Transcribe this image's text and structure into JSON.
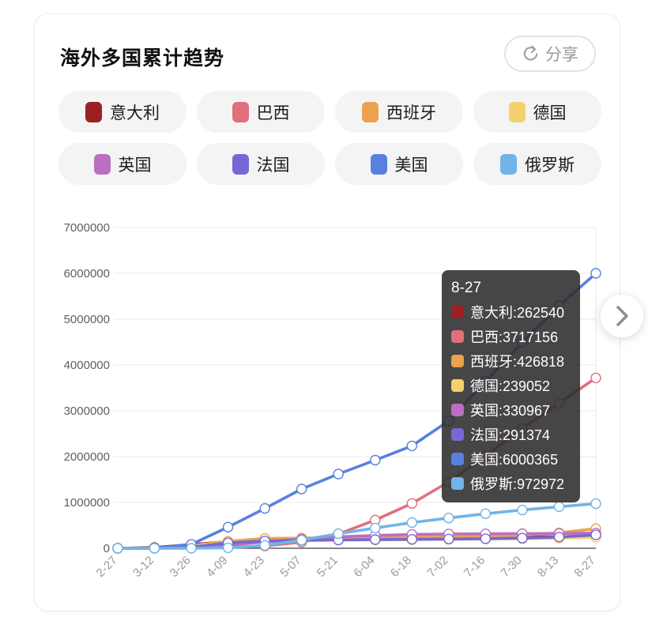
{
  "header": {
    "title": "海外多国累计趋势",
    "share_label": "分享",
    "share_icon": "circular-arrow-share",
    "next_icon": "chevron-right"
  },
  "legend": {
    "items": [
      {
        "label": "意大利",
        "color": "#9D2021"
      },
      {
        "label": "巴西",
        "color": "#E0707B"
      },
      {
        "label": "西班牙",
        "color": "#EBA14F"
      },
      {
        "label": "德国",
        "color": "#F2D06B"
      },
      {
        "label": "英国",
        "color": "#BA6FC2"
      },
      {
        "label": "法国",
        "color": "#7568D6"
      },
      {
        "label": "美国",
        "color": "#5880E0"
      },
      {
        "label": "俄罗斯",
        "color": "#70B4E8"
      }
    ]
  },
  "chart_data": {
    "type": "line",
    "title": "海外多国累计趋势",
    "x": [
      "2-27",
      "3-12",
      "3-26",
      "4-09",
      "4-23",
      "5-07",
      "5-21",
      "6-04",
      "6-18",
      "7-02",
      "7-16",
      "7-30",
      "8-13",
      "8-27"
    ],
    "ylim": [
      0,
      7000000
    ],
    "yticks": [
      0,
      1000000,
      2000000,
      3000000,
      4000000,
      5000000,
      6000000,
      7000000
    ],
    "grid": true,
    "legend_position": "top",
    "series": [
      {
        "name": "意大利",
        "color": "#9D2021",
        "values": [
          650,
          15113,
          80589,
          143626,
          189973,
          215858,
          228006,
          234013,
          238159,
          240760,
          243736,
          246776,
          252235,
          262540
        ]
      },
      {
        "name": "巴西",
        "color": "#E0707B",
        "values": [
          1,
          60,
          2915,
          18092,
          49492,
          135106,
          310087,
          614941,
          978142,
          1448753,
          2012151,
          2610102,
          3164785,
          3717156
        ]
      },
      {
        "name": "西班牙",
        "color": "#EBA14F",
        "values": [
          25,
          2950,
          56188,
          152446,
          213024,
          220325,
          232555,
          240326,
          245268,
          250103,
          258855,
          285430,
          337334,
          426818
        ]
      },
      {
        "name": "德国",
        "color": "#F2D06B",
        "values": [
          46,
          2078,
          43938,
          118181,
          150648,
          168551,
          177778,
          183271,
          188252,
          195674,
          201450,
          207828,
          221413,
          239052
        ]
      },
      {
        "name": "英国",
        "color": "#BA6FC2",
        "values": [
          15,
          590,
          11658,
          65077,
          138078,
          201101,
          248818,
          279856,
          300469,
          312654,
          315081,
          318484,
          322280,
          330967
        ]
      },
      {
        "name": "法国",
        "color": "#7568D6",
        "values": [
          38,
          2876,
          25233,
          117749,
          158183,
          174791,
          181575,
          189220,
          195535,
          202063,
          208813,
          220352,
          244854,
          291374
        ]
      },
      {
        "name": "美国",
        "color": "#5880E0",
        "values": [
          60,
          1663,
          83836,
          461437,
          869170,
          1292623,
          1620902,
          1923051,
          2234471,
          2779953,
          3638034,
          4495015,
          5292222,
          6000365
        ]
      },
      {
        "name": "俄罗斯",
        "color": "#70B4E8",
        "values": [
          2,
          28,
          840,
          10131,
          62773,
          177160,
          317554,
          441108,
          561091,
          661165,
          752797,
          834499,
          907758,
          972972
        ]
      }
    ]
  },
  "tooltip": {
    "title": "8-27",
    "rows": [
      {
        "text": "意大利:262540",
        "color": "#9D2021"
      },
      {
        "text": "巴西:3717156",
        "color": "#E0707B"
      },
      {
        "text": "西班牙:426818",
        "color": "#EBA14F"
      },
      {
        "text": "德国:239052",
        "color": "#F2D06B"
      },
      {
        "text": "英国:330967",
        "color": "#BA6FC2"
      },
      {
        "text": "法国:291374",
        "color": "#7568D6"
      },
      {
        "text": "美国:6000365",
        "color": "#5880E0"
      },
      {
        "text": "俄罗斯:972972",
        "color": "#70B4E8"
      }
    ]
  }
}
